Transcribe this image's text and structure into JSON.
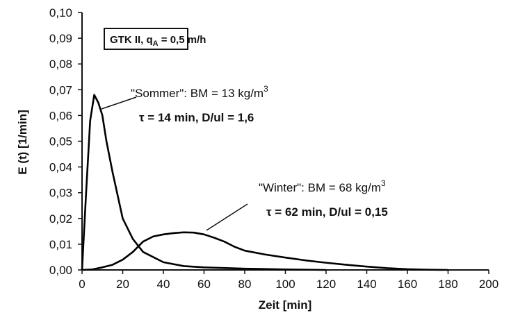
{
  "chart_data": {
    "type": "line",
    "xlabel": "Zeit [min]",
    "ylabel": "E (t) [1/min]",
    "xlim": [
      0,
      200
    ],
    "xticks": [
      0,
      20,
      40,
      60,
      80,
      100,
      120,
      140,
      160,
      180,
      200
    ],
    "ylim": [
      0,
      0.1
    ],
    "yticks": [
      {
        "value": 0,
        "label": "0,00"
      },
      {
        "value": 0.01,
        "label": "0,01"
      },
      {
        "value": 0.02,
        "label": "0,02"
      },
      {
        "value": 0.03,
        "label": "0,03"
      },
      {
        "value": 0.04,
        "label": "0,04"
      },
      {
        "value": 0.05,
        "label": "0,05"
      },
      {
        "value": 0.06,
        "label": "0,06"
      },
      {
        "value": 0.07,
        "label": "0,07"
      },
      {
        "value": 0.08,
        "label": "0,08"
      },
      {
        "value": 0.09,
        "label": "0,09"
      },
      {
        "value": 0.1,
        "label": "0,10"
      }
    ],
    "grid": false,
    "series": [
      {
        "name": "Sommer",
        "color": "#000000",
        "x": [
          0,
          2,
          4,
          6,
          8,
          10,
          12,
          15,
          20,
          25,
          30,
          40,
          50,
          60,
          80,
          100,
          120
        ],
        "values": [
          0,
          0.03,
          0.058,
          0.068,
          0.065,
          0.06,
          0.05,
          0.038,
          0.02,
          0.012,
          0.007,
          0.003,
          0.0015,
          0.001,
          0.0005,
          0.0002,
          0
        ]
      },
      {
        "name": "Winter",
        "color": "#000000",
        "x": [
          0,
          5,
          10,
          15,
          20,
          25,
          30,
          35,
          40,
          45,
          50,
          55,
          60,
          65,
          70,
          75,
          80,
          90,
          100,
          110,
          120,
          130,
          140,
          150,
          160,
          170,
          180
        ],
        "values": [
          0,
          0.0002,
          0.001,
          0.002,
          0.004,
          0.007,
          0.011,
          0.013,
          0.0138,
          0.0143,
          0.0146,
          0.0145,
          0.0138,
          0.0125,
          0.011,
          0.009,
          0.0075,
          0.006,
          0.0048,
          0.0037,
          0.0028,
          0.002,
          0.0013,
          0.0007,
          0.0003,
          0.0001,
          0
        ]
      }
    ],
    "annotations": [
      {
        "main": "GTK II, q",
        "sub": "A",
        "rest": " = 0,5 m/h"
      },
      {
        "line1": "\"Sommer\":  BM = 13 kg/m",
        "sup": "3",
        "line2": "τ = 14 min, D/ul = 1,6"
      },
      {
        "line1": "\"Winter\": BM = 68 kg/m",
        "sup": "3",
        "line2": "τ = 62 min, D/ul = 0,15"
      }
    ]
  }
}
